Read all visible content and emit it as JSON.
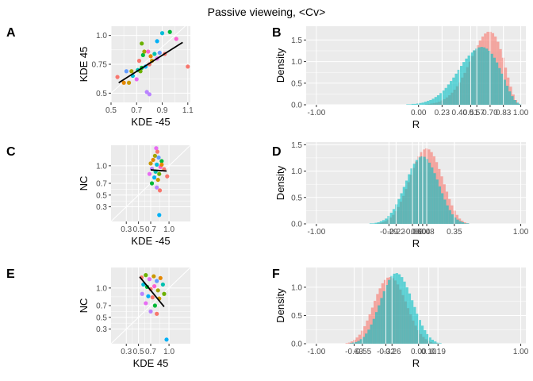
{
  "title": "Passive vieweing, <Cv>",
  "panel_letters": [
    "A",
    "B",
    "C",
    "D",
    "E",
    "F"
  ],
  "colors": {
    "panel_bg": "#ebebeb",
    "grid": "#ffffff",
    "hist_a": "#f8766d",
    "hist_b": "#00bfc4",
    "fit": "#000000",
    "points": [
      "#f8766d",
      "#e58700",
      "#c99800",
      "#a3a500",
      "#6bb100",
      "#00ba38",
      "#00c0af",
      "#00bcd8",
      "#00b0f6",
      "#619cff",
      "#b983ff",
      "#e76bf3",
      "#fd61d1"
    ]
  },
  "chart_data": [
    {
      "panel": "A",
      "type": "scatter",
      "xlabel": "KDE -45",
      "ylabel": "KDE 45",
      "xlim": [
        0.5,
        1.12
      ],
      "ylim": [
        0.42,
        1.08
      ],
      "xticks": [
        0.5,
        0.7,
        0.9,
        1.1
      ],
      "xtick_labels": [
        "0.5",
        "0.7",
        "0.9",
        "1.1"
      ],
      "yticks": [
        0.5,
        0.75,
        1.0
      ],
      "ytick_labels": [
        "0.5",
        "0.75",
        "1.0"
      ],
      "points": [
        {
          "x": 0.55,
          "y": 0.64,
          "c": 0
        },
        {
          "x": 0.6,
          "y": 0.59,
          "c": 1
        },
        {
          "x": 0.64,
          "y": 0.59,
          "c": 2
        },
        {
          "x": 0.62,
          "y": 0.69,
          "c": 9
        },
        {
          "x": 0.66,
          "y": 0.69,
          "c": 3
        },
        {
          "x": 0.67,
          "y": 0.65,
          "c": 7
        },
        {
          "x": 0.7,
          "y": 0.62,
          "c": 11
        },
        {
          "x": 0.71,
          "y": 0.7,
          "c": 6
        },
        {
          "x": 0.72,
          "y": 0.78,
          "c": 0
        },
        {
          "x": 0.73,
          "y": 0.69,
          "c": 4
        },
        {
          "x": 0.74,
          "y": 0.72,
          "c": 5
        },
        {
          "x": 0.75,
          "y": 0.83,
          "c": 5
        },
        {
          "x": 0.76,
          "y": 0.86,
          "c": 3
        },
        {
          "x": 0.77,
          "y": 0.73,
          "c": 8
        },
        {
          "x": 0.78,
          "y": 0.51,
          "c": 10
        },
        {
          "x": 0.79,
          "y": 0.86,
          "c": 12
        },
        {
          "x": 0.8,
          "y": 0.75,
          "c": 0
        },
        {
          "x": 0.8,
          "y": 0.49,
          "c": 10
        },
        {
          "x": 0.81,
          "y": 0.82,
          "c": 1
        },
        {
          "x": 0.82,
          "y": 0.78,
          "c": 2
        },
        {
          "x": 0.84,
          "y": 0.84,
          "c": 6
        },
        {
          "x": 0.86,
          "y": 0.8,
          "c": 11
        },
        {
          "x": 0.88,
          "y": 0.85,
          "c": 9
        },
        {
          "x": 0.9,
          "y": 1.02,
          "c": 7
        },
        {
          "x": 0.92,
          "y": 0.84,
          "c": 0
        },
        {
          "x": 0.96,
          "y": 1.03,
          "c": 5
        },
        {
          "x": 1.01,
          "y": 0.97,
          "c": 12
        },
        {
          "x": 1.1,
          "y": 0.73,
          "c": 0
        },
        {
          "x": 0.86,
          "y": 0.95,
          "c": 8
        },
        {
          "x": 0.74,
          "y": 0.93,
          "c": 4
        }
      ],
      "fit": [
        [
          0.56,
          0.59
        ],
        [
          1.06,
          0.94
        ]
      ]
    },
    {
      "panel": "B",
      "type": "bar",
      "xlabel": "R",
      "ylabel": "Density",
      "xlim": [
        -1.1,
        1.05
      ],
      "ylim": [
        0,
        1.82
      ],
      "xticks": [
        -1.0,
        0.0,
        0.23,
        0.4,
        0.51,
        0.57,
        0.7,
        0.83,
        1.0
      ],
      "xtick_labels": [
        "-1.00",
        "0.00",
        "0.23",
        "0.40",
        "0.51",
        "0.57",
        "0.70",
        "0.83",
        "1.00"
      ],
      "yticks": [
        0.0,
        0.5,
        1.0,
        1.5
      ],
      "ytick_labels": [
        "0.0",
        "0.5",
        "1.0",
        "1.5"
      ],
      "vlines": [
        0.0,
        0.23,
        0.4,
        0.51,
        0.57,
        0.7,
        0.83,
        1.0
      ],
      "bin_width": 0.025,
      "series": [
        {
          "values": [
            0.0,
            0.0,
            0.0,
            0.0,
            0.0,
            0.01,
            0.02,
            0.03,
            0.04,
            0.05,
            0.07,
            0.1,
            0.13,
            0.17,
            0.22,
            0.28,
            0.35,
            0.43,
            0.52,
            0.63,
            0.74,
            0.87,
            1.0,
            1.13,
            1.26,
            1.38,
            1.49,
            1.58,
            1.65,
            1.69,
            1.69,
            1.66,
            1.58,
            1.46,
            1.29,
            1.09,
            0.86,
            0.63,
            0.42,
            0.24,
            0.11,
            0.03,
            0.0,
            0.0,
            0.0
          ],
          "x0": -0.06
        },
        {
          "values": [
            0.01,
            0.01,
            0.02,
            0.02,
            0.03,
            0.04,
            0.05,
            0.07,
            0.09,
            0.11,
            0.14,
            0.18,
            0.22,
            0.27,
            0.33,
            0.39,
            0.47,
            0.55,
            0.63,
            0.72,
            0.81,
            0.9,
            0.99,
            1.07,
            1.14,
            1.21,
            1.26,
            1.3,
            1.33,
            1.34,
            1.33,
            1.3,
            1.25,
            1.18,
            1.09,
            0.98,
            0.85,
            0.72,
            0.58,
            0.44,
            0.31,
            0.2,
            0.11,
            0.05,
            0.02,
            0.0
          ],
          "x0": -0.12
        }
      ]
    },
    {
      "panel": "C",
      "type": "scatter",
      "xlabel": "KDE -45",
      "ylabel": "NC",
      "xlim": [
        0.05,
        1.35
      ],
      "ylim": [
        0.05,
        1.35
      ],
      "xticks": [
        0.3,
        0.5,
        0.7,
        1.0
      ],
      "xtick_labels": [
        "0.3",
        "0.5",
        "0.7",
        "1.0"
      ],
      "yticks": [
        0.3,
        0.5,
        0.7,
        1.0
      ],
      "ytick_labels": [
        "0.3",
        "0.5",
        "0.7",
        "1.0"
      ],
      "points": [
        {
          "x": 0.79,
          "y": 1.3,
          "c": 11
        },
        {
          "x": 0.81,
          "y": 1.24,
          "c": 0
        },
        {
          "x": 0.77,
          "y": 1.17,
          "c": 3
        },
        {
          "x": 0.83,
          "y": 1.14,
          "c": 9
        },
        {
          "x": 0.74,
          "y": 1.1,
          "c": 1
        },
        {
          "x": 0.88,
          "y": 1.08,
          "c": 5
        },
        {
          "x": 0.7,
          "y": 1.04,
          "c": 2
        },
        {
          "x": 0.8,
          "y": 1.02,
          "c": 7
        },
        {
          "x": 0.86,
          "y": 0.98,
          "c": 12
        },
        {
          "x": 0.92,
          "y": 0.94,
          "c": 0
        },
        {
          "x": 0.72,
          "y": 0.95,
          "c": 10
        },
        {
          "x": 0.78,
          "y": 0.9,
          "c": 6
        },
        {
          "x": 0.68,
          "y": 0.86,
          "c": 11
        },
        {
          "x": 0.84,
          "y": 0.86,
          "c": 4
        },
        {
          "x": 0.97,
          "y": 0.82,
          "c": 0
        },
        {
          "x": 0.76,
          "y": 0.8,
          "c": 8
        },
        {
          "x": 0.82,
          "y": 0.76,
          "c": 2
        },
        {
          "x": 0.72,
          "y": 0.7,
          "c": 5
        },
        {
          "x": 0.8,
          "y": 0.63,
          "c": 10
        },
        {
          "x": 0.85,
          "y": 0.58,
          "c": 0
        },
        {
          "x": 0.84,
          "y": 0.16,
          "c": 8
        },
        {
          "x": 0.88,
          "y": 1.02,
          "c": 1
        }
      ],
      "fit": [
        [
          0.7,
          0.93
        ],
        [
          0.96,
          0.91
        ]
      ]
    },
    {
      "panel": "D",
      "type": "bar",
      "xlabel": "R",
      "ylabel": "Density",
      "xlim": [
        -1.1,
        1.05
      ],
      "ylim": [
        0,
        1.55
      ],
      "xticks": [
        -1.0,
        -0.29,
        -0.22,
        -0.06,
        0.0,
        0.04,
        0.08,
        0.35,
        1.0
      ],
      "xtick_labels": [
        "-1.00",
        "-0.29",
        "-0.22",
        "-0.06",
        "0.00",
        "0.04",
        "0.08",
        "0.35",
        "1.00"
      ],
      "yticks": [
        0.0,
        0.5,
        1.0,
        1.5
      ],
      "ytick_labels": [
        "0.0",
        "0.5",
        "1.0",
        "1.5"
      ],
      "vlines": [
        -0.29,
        -0.22,
        -0.06,
        0.0,
        0.04,
        0.08,
        0.35,
        1.0
      ],
      "bin_width": 0.025,
      "series": [
        {
          "values": [
            0.0,
            0.0,
            0.01,
            0.02,
            0.03,
            0.05,
            0.08,
            0.12,
            0.17,
            0.24,
            0.32,
            0.42,
            0.53,
            0.66,
            0.79,
            0.93,
            1.06,
            1.18,
            1.28,
            1.36,
            1.41,
            1.43,
            1.41,
            1.36,
            1.28,
            1.17,
            1.04,
            0.9,
            0.75,
            0.61,
            0.47,
            0.35,
            0.25,
            0.17,
            0.1,
            0.06,
            0.03,
            0.01,
            0.0
          ],
          "x0": -0.46
        },
        {
          "values": [
            0.01,
            0.01,
            0.02,
            0.03,
            0.05,
            0.07,
            0.1,
            0.15,
            0.21,
            0.28,
            0.37,
            0.47,
            0.58,
            0.7,
            0.82,
            0.94,
            1.05,
            1.14,
            1.21,
            1.26,
            1.28,
            1.27,
            1.23,
            1.16,
            1.07,
            0.96,
            0.84,
            0.71,
            0.58,
            0.46,
            0.35,
            0.26,
            0.18,
            0.12,
            0.08,
            0.05,
            0.03,
            0.01,
            0.01
          ],
          "x0": -0.48
        }
      ]
    },
    {
      "panel": "E",
      "type": "scatter",
      "xlabel": "KDE 45",
      "ylabel": "NC",
      "xlim": [
        0.05,
        1.35
      ],
      "ylim": [
        0.05,
        1.35
      ],
      "xticks": [
        0.3,
        0.5,
        0.7,
        1.0
      ],
      "xtick_labels": [
        "0.3",
        "0.5",
        "0.7",
        "1.0"
      ],
      "yticks": [
        0.3,
        0.5,
        0.7,
        1.0
      ],
      "ytick_labels": [
        "0.3",
        "0.5",
        "0.7",
        "1.0"
      ],
      "points": [
        {
          "x": 0.55,
          "y": 1.18,
          "c": 0
        },
        {
          "x": 0.62,
          "y": 1.22,
          "c": 4
        },
        {
          "x": 0.68,
          "y": 1.15,
          "c": 11
        },
        {
          "x": 0.75,
          "y": 1.2,
          "c": 2
        },
        {
          "x": 0.8,
          "y": 1.12,
          "c": 9
        },
        {
          "x": 0.86,
          "y": 1.17,
          "c": 1
        },
        {
          "x": 0.58,
          "y": 1.06,
          "c": 7
        },
        {
          "x": 0.64,
          "y": 1.02,
          "c": 5
        },
        {
          "x": 0.7,
          "y": 0.98,
          "c": 0
        },
        {
          "x": 0.76,
          "y": 1.03,
          "c": 12
        },
        {
          "x": 0.82,
          "y": 0.96,
          "c": 3
        },
        {
          "x": 0.9,
          "y": 1.06,
          "c": 6
        },
        {
          "x": 0.56,
          "y": 0.9,
          "c": 10
        },
        {
          "x": 0.66,
          "y": 0.86,
          "c": 8
        },
        {
          "x": 0.73,
          "y": 0.84,
          "c": 0
        },
        {
          "x": 0.84,
          "y": 0.82,
          "c": 2
        },
        {
          "x": 0.62,
          "y": 0.74,
          "c": 11
        },
        {
          "x": 0.77,
          "y": 0.7,
          "c": 5
        },
        {
          "x": 0.7,
          "y": 0.6,
          "c": 10
        },
        {
          "x": 0.8,
          "y": 0.56,
          "c": 0
        },
        {
          "x": 0.96,
          "y": 0.12,
          "c": 8
        },
        {
          "x": 0.92,
          "y": 0.9,
          "c": 4
        }
      ],
      "fit": [
        [
          0.52,
          1.19
        ],
        [
          0.92,
          0.68
        ]
      ]
    },
    {
      "panel": "F",
      "type": "bar",
      "xlabel": "R",
      "ylabel": "Density",
      "xlim": [
        -1.1,
        1.05
      ],
      "ylim": [
        0,
        1.35
      ],
      "xticks": [
        -1.0,
        -0.63,
        -0.55,
        -0.32,
        -0.26,
        0.0,
        0.1,
        0.19,
        1.0
      ],
      "xtick_labels": [
        "-1.00",
        "-0.63",
        "-0.55",
        "-0.32",
        "-0.26",
        "0.00",
        "0.10",
        "0.19",
        "1.00"
      ],
      "yticks": [
        0.0,
        0.5,
        1.0
      ],
      "ytick_labels": [
        "0.0",
        "0.5",
        "1.0"
      ],
      "vlines": [
        -0.63,
        -0.55,
        -0.32,
        -0.26,
        0.0,
        0.1,
        0.19,
        1.0
      ],
      "bin_width": 0.025,
      "series": [
        {
          "values": [
            0.0,
            0.01,
            0.02,
            0.04,
            0.07,
            0.11,
            0.16,
            0.23,
            0.31,
            0.41,
            0.52,
            0.64,
            0.76,
            0.88,
            0.98,
            1.07,
            1.13,
            1.17,
            1.18,
            1.16,
            1.12,
            1.05,
            0.96,
            0.86,
            0.75,
            0.63,
            0.52,
            0.41,
            0.32,
            0.24,
            0.17,
            0.12,
            0.08,
            0.05,
            0.03,
            0.01,
            0.01,
            0.0
          ],
          "x0": -0.74
        },
        {
          "values": [
            0.0,
            0.01,
            0.02,
            0.03,
            0.05,
            0.08,
            0.12,
            0.18,
            0.25,
            0.34,
            0.44,
            0.56,
            0.68,
            0.81,
            0.93,
            1.04,
            1.13,
            1.2,
            1.24,
            1.25,
            1.23,
            1.18,
            1.1,
            1.0,
            0.89,
            0.77,
            0.65,
            0.53,
            0.42,
            0.32,
            0.24,
            0.17,
            0.11,
            0.07,
            0.04,
            0.02,
            0.01,
            0.0
          ],
          "x0": -0.7
        }
      ]
    }
  ]
}
